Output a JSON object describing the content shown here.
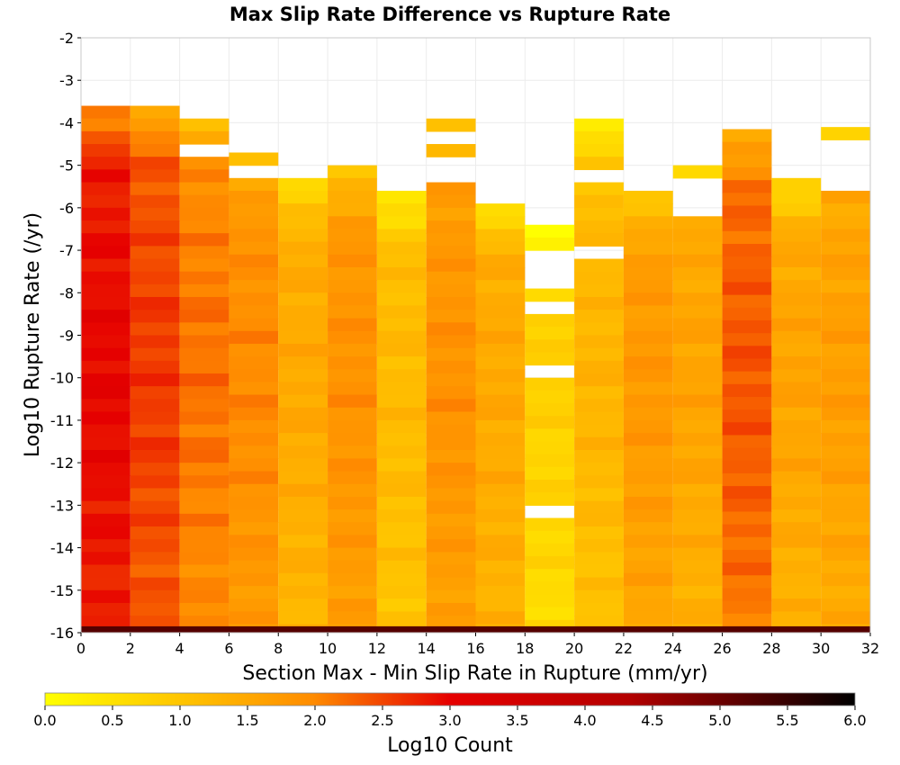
{
  "chart_data": {
    "type": "heatmap",
    "title": "Max Slip Rate Difference vs Rupture Rate",
    "xlabel": "Section Max - Min Slip Rate in Rupture (mm/yr)",
    "ylabel": "Log10 Rupture Rate (/yr)",
    "colorbar_label": "Log10 Count",
    "xlim": [
      0,
      32
    ],
    "ylim": [
      -16,
      -2
    ],
    "x_ticks": [
      "0",
      "2",
      "4",
      "6",
      "8",
      "10",
      "12",
      "14",
      "16",
      "18",
      "20",
      "22",
      "24",
      "26",
      "28",
      "30",
      "32"
    ],
    "y_ticks": [
      "-2",
      "-3",
      "-4",
      "-5",
      "-6",
      "-7",
      "-8",
      "-9",
      "-10",
      "-11",
      "-12",
      "-13",
      "-14",
      "-15",
      "-16"
    ],
    "colorbar_range": [
      0,
      6
    ],
    "colorbar_ticks": [
      "0.0",
      "0.5",
      "1.0",
      "1.5",
      "2.0",
      "2.5",
      "3.0",
      "3.5",
      "4.0",
      "4.5",
      "5.0",
      "5.5",
      "6.0"
    ],
    "color_scale": [
      "#ffff00",
      "#ff8c00",
      "#e60000",
      "#000000"
    ],
    "x_bin_width": 2,
    "y_bin_width": 0.3,
    "columns": [
      {
        "x": 1,
        "top": -3.6,
        "bottom": -15.9,
        "base": 2.7,
        "peak": 3.0,
        "holes": []
      },
      {
        "x": 3,
        "top": -3.6,
        "bottom": -15.9,
        "base": 2.3,
        "peak": 2.6,
        "holes": []
      },
      {
        "x": 5,
        "top": -3.9,
        "bottom": -15.9,
        "base": 1.9,
        "peak": 2.2,
        "holes": [
          [
            -4.5,
            -4.7
          ]
        ]
      },
      {
        "x": 7,
        "top": -4.7,
        "bottom": -15.9,
        "base": 1.7,
        "peak": 2.0,
        "holes": [
          [
            -5.0,
            -5.3
          ]
        ]
      },
      {
        "x": 9,
        "top": -5.3,
        "bottom": -15.9,
        "base": 1.25,
        "peak": 1.5,
        "holes": []
      },
      {
        "x": 11,
        "top": -5.0,
        "bottom": -15.9,
        "base": 1.65,
        "peak": 1.9,
        "holes": []
      },
      {
        "x": 13,
        "top": -5.6,
        "bottom": -15.9,
        "base": 1.0,
        "peak": 1.2,
        "holes": []
      },
      {
        "x": 15,
        "top": -3.9,
        "bottom": -15.9,
        "base": 1.6,
        "peak": 1.9,
        "holes": [
          [
            -4.2,
            -4.4
          ],
          [
            -4.7,
            -5.3
          ]
        ]
      },
      {
        "x": 17,
        "top": -5.9,
        "bottom": -15.9,
        "base": 1.3,
        "peak": 1.5,
        "holes": []
      },
      {
        "x": 19,
        "top": -6.4,
        "bottom": -15.9,
        "base": 0.6,
        "peak": 0.8,
        "holes": [
          [
            -7.0,
            -7.8
          ],
          [
            -8.1,
            -8.4
          ],
          [
            -9.6,
            -9.9
          ],
          [
            -13.0,
            -13.3
          ]
        ]
      },
      {
        "x": 21,
        "top": -3.9,
        "bottom": -15.9,
        "base": 1.0,
        "peak": 1.3,
        "holes": [
          [
            -5.0,
            -5.3
          ],
          [
            -7.0,
            -7.3
          ]
        ]
      },
      {
        "x": 23,
        "top": -5.6,
        "bottom": -15.9,
        "base": 1.5,
        "peak": 1.8,
        "holes": []
      },
      {
        "x": 25,
        "top": -5.0,
        "bottom": -15.9,
        "base": 1.3,
        "peak": 1.6,
        "holes": [
          [
            -5.3,
            -6.2
          ]
        ]
      },
      {
        "x": 27,
        "top": -4.15,
        "bottom": -15.9,
        "base": 2.1,
        "peak": 2.4,
        "holes": []
      },
      {
        "x": 29,
        "top": -5.3,
        "bottom": -15.9,
        "base": 1.3,
        "peak": 1.6,
        "holes": []
      },
      {
        "x": 31,
        "top": -4.1,
        "bottom": -15.9,
        "base": 1.4,
        "peak": 1.7,
        "holes": [
          [
            -4.4,
            -5.6
          ]
        ]
      }
    ],
    "bottom_row": {
      "y_range": [
        -16.0,
        -15.85
      ],
      "value": 5.2
    }
  }
}
